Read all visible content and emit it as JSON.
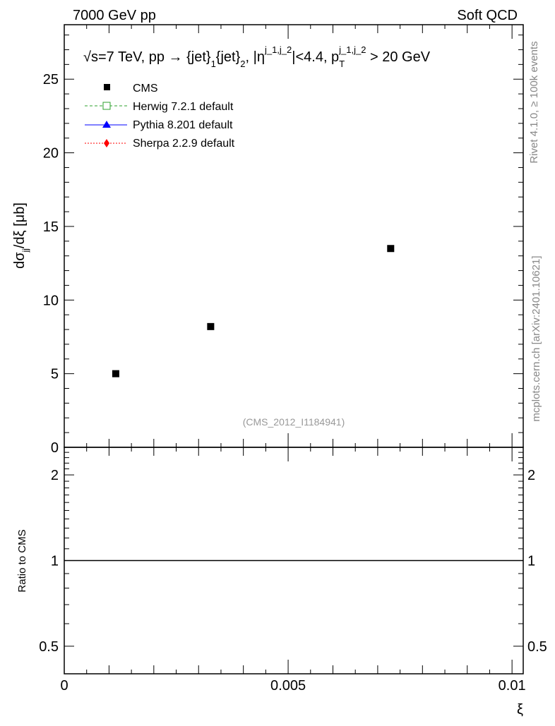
{
  "header": {
    "left": "7000 GeV pp",
    "right": "Soft QCD"
  },
  "side": {
    "rivet": "Rivet 4.1.0, ≥ 100k events",
    "mcplots": "mcplots.cern.ch [arXiv:2401.10621]"
  },
  "chart_data": [
    {
      "type": "scatter",
      "title": "√s=7 TeV, pp → {jet}₁{jet}₂, |η^{j_1,j_2}|<4.4, p_T^{j_1,j_2} > 20 GeV",
      "title_parts": {
        "a": "√s=7 TeV, pp →  {jet}",
        "s1": "1",
        "b": "{jet}",
        "s2": "2",
        "c": ", |η",
        "sup1": "j_1,j_2",
        "d": "|<4.4, p",
        "sub": "T",
        "sup2": "j_1,j_2",
        "e": " > 20 GeV"
      },
      "ylabel": "dσjj/dξ [μb]",
      "ylabel_parts": {
        "a": "dσ",
        "sub": "jj",
        "b": "/dξ [μb]"
      },
      "xlim": [
        0,
        0.01025
      ],
      "ylim": [
        0,
        28.7
      ],
      "yticks": [
        0,
        5,
        10,
        15,
        20,
        25
      ],
      "ytick_labels": [
        "0",
        "5",
        "10",
        "15",
        "20",
        "25"
      ],
      "watermark": "(CMS_2012_I1184941)",
      "legend": [
        "CMS",
        "Herwig 7.2.1 default",
        "Pythia 8.201 default",
        "Sherpa 2.2.9 default"
      ],
      "legend_colors": [
        "#000000",
        "#2ca02c",
        "#0000ff",
        "#ff0000"
      ],
      "series": [
        {
          "name": "CMS",
          "x": [
            0.00115,
            0.00327,
            0.00729
          ],
          "y": [
            5.0,
            8.2,
            13.5
          ]
        }
      ]
    },
    {
      "type": "line",
      "ylabel": "Ratio to CMS",
      "xlabel": "ξ",
      "yscale": "log",
      "ylim": [
        0.4,
        2.5
      ],
      "xlim": [
        0,
        0.01025
      ],
      "yticks": [
        0.5,
        1,
        2
      ],
      "ytick_labels": [
        "0.5",
        "1",
        "2"
      ],
      "xticks": [
        0,
        0.005,
        0.01
      ],
      "xtick_labels": [
        "0",
        "0.005",
        "0.01"
      ],
      "series": [
        {
          "name": "CMS",
          "x": [
            0,
            0.01025
          ],
          "y": [
            1,
            1
          ]
        }
      ]
    }
  ]
}
